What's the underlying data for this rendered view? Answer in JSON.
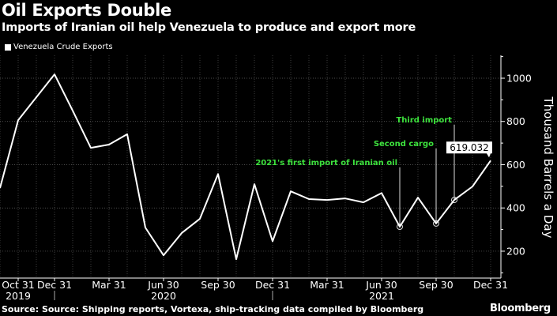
{
  "title": "Oil Exports Double",
  "subtitle": "Imports of Iranian oil help Venezuela to produce and export more",
  "source": "Source: Source: Shipping reports, Vortexa, ship-tracking data compiled by Bloomberg",
  "brand": "Bloomberg",
  "colors": {
    "background": "#000000",
    "line": "#ffffff",
    "annotation": "#3de23d",
    "grid": "#666666"
  },
  "chart_data": {
    "type": "line",
    "title": "Oil Exports Double",
    "subtitle": "Imports of Iranian oil help Venezuela to produce and export more",
    "ylabel": "Thousand Barrels a Day",
    "ylim": [
      75,
      1100
    ],
    "y_ticks": [
      200,
      400,
      600,
      800,
      1000
    ],
    "grid": true,
    "y_axis_side": "right",
    "legend": {
      "position": "top-left",
      "entries": [
        "Venezuela Crude Exports"
      ]
    },
    "x_ticks": [
      {
        "label": "Oct 31",
        "date": "2019-10-31",
        "year": "2019"
      },
      {
        "label": "Dec 31",
        "date": "2019-12-31"
      },
      {
        "label": "Mar 31",
        "date": "2020-03-31"
      },
      {
        "label": "Jun 30",
        "date": "2020-06-30",
        "year": "2020"
      },
      {
        "label": "Sep 30",
        "date": "2020-09-30"
      },
      {
        "label": "Dec 31",
        "date": "2020-12-31"
      },
      {
        "label": "Mar 31",
        "date": "2021-03-31"
      },
      {
        "label": "Jun 30",
        "date": "2021-06-30",
        "year": "2021"
      },
      {
        "label": "Sep 30",
        "date": "2021-09-30"
      },
      {
        "label": "Dec 31",
        "date": "2021-12-31"
      }
    ],
    "series": [
      {
        "name": "Venezuela Crude Exports",
        "x": [
          "2019-09-30",
          "2019-10-31",
          "2019-11-30",
          "2019-12-31",
          "2020-01-31",
          "2020-02-29",
          "2020-03-31",
          "2020-04-30",
          "2020-05-31",
          "2020-06-30",
          "2020-07-31",
          "2020-08-31",
          "2020-09-30",
          "2020-10-31",
          "2020-11-30",
          "2020-12-31",
          "2021-01-31",
          "2021-02-28",
          "2021-03-31",
          "2021-04-30",
          "2021-05-31",
          "2021-06-30",
          "2021-07-31",
          "2021-08-31",
          "2021-09-30",
          "2021-10-31",
          "2021-11-30",
          "2021-12-31"
        ],
        "values": [
          492,
          806,
          912,
          1018,
          850,
          678,
          693,
          741,
          309,
          181,
          284,
          350,
          557,
          163,
          510,
          246,
          477,
          441,
          437,
          444,
          426,
          469,
          313,
          448,
          328,
          437,
          499,
          619.032
        ]
      }
    ],
    "last_value_label": "619.032",
    "annotations": [
      {
        "text": "2021's first import of Iranian oil",
        "date": "2021-07-31"
      },
      {
        "text": "Second cargo",
        "date": "2021-09-30"
      },
      {
        "text": "Third import",
        "date": "2021-10-31"
      }
    ]
  }
}
